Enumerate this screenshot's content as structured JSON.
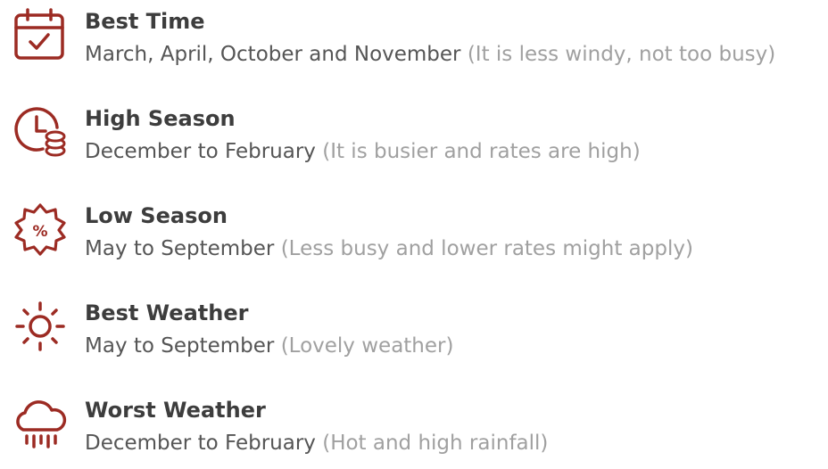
{
  "colors": {
    "accent": "#9c2b23",
    "title": "#3d3d3d",
    "text": "#555555",
    "muted": "#a0a0a0"
  },
  "items": [
    {
      "icon": "calendar-check-icon",
      "title": "Best Time",
      "main": "March, April, October and November",
      "note": "(It is less windy, not too busy)"
    },
    {
      "icon": "clock-coins-icon",
      "title": "High Season",
      "main": "December to February",
      "note": "(It is busier and rates are high)"
    },
    {
      "icon": "percent-badge-icon",
      "title": "Low Season",
      "main": "May to September",
      "note": "(Less busy and lower rates might apply)"
    },
    {
      "icon": "sun-icon",
      "title": "Best Weather",
      "main": "May to September",
      "note": "(Lovely weather)"
    },
    {
      "icon": "rain-cloud-icon",
      "title": "Worst Weather",
      "main": "December to February",
      "note": "(Hot and high rainfall)"
    }
  ]
}
